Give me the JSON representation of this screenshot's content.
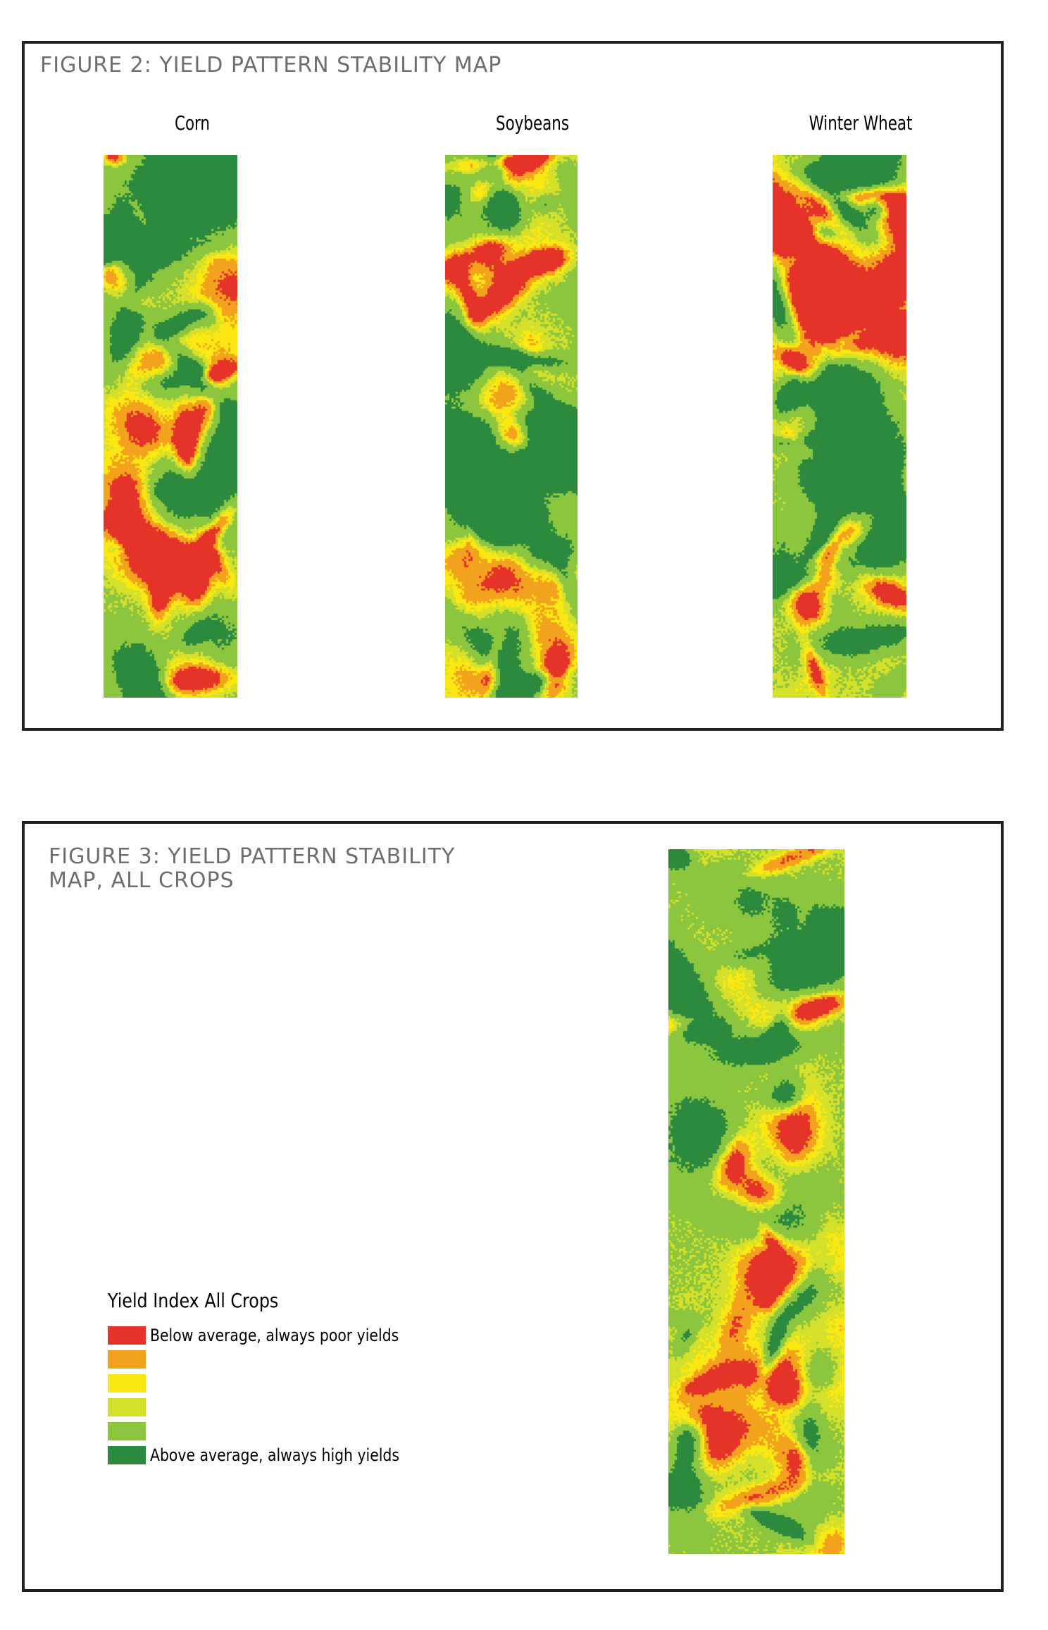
{
  "figure2": {
    "title": "FIGURE 2: YIELD PATTERN STABILITY MAP",
    "panels": [
      {
        "label": "Corn",
        "seed": 11
      },
      {
        "label": "Soybeans",
        "seed": 29
      },
      {
        "label": "Winter Wheat",
        "seed": 47
      }
    ]
  },
  "figure3": {
    "title": "FIGURE 3: YIELD PATTERN STABILITY\nMAP, ALL CROPS",
    "seed": 83
  },
  "legend": {
    "title": "Yield Index All Crops",
    "items": [
      {
        "label": "Below average, always poor yields",
        "color": "#e63329"
      },
      {
        "label": "",
        "color": "#f3a21d"
      },
      {
        "label": "",
        "color": "#fbe812"
      },
      {
        "label": "",
        "color": "#d4e02a"
      },
      {
        "label": "",
        "color": "#8cc63f"
      },
      {
        "label": "Above average, always high yields",
        "color": "#2b8a3e"
      }
    ]
  },
  "colors": {
    "class_colors": [
      "#e63329",
      "#f3a21d",
      "#fbe812",
      "#d4e02a",
      "#8cc63f",
      "#2b8a3e"
    ],
    "border": "#231f20",
    "title_gray": "#6d6e71"
  }
}
